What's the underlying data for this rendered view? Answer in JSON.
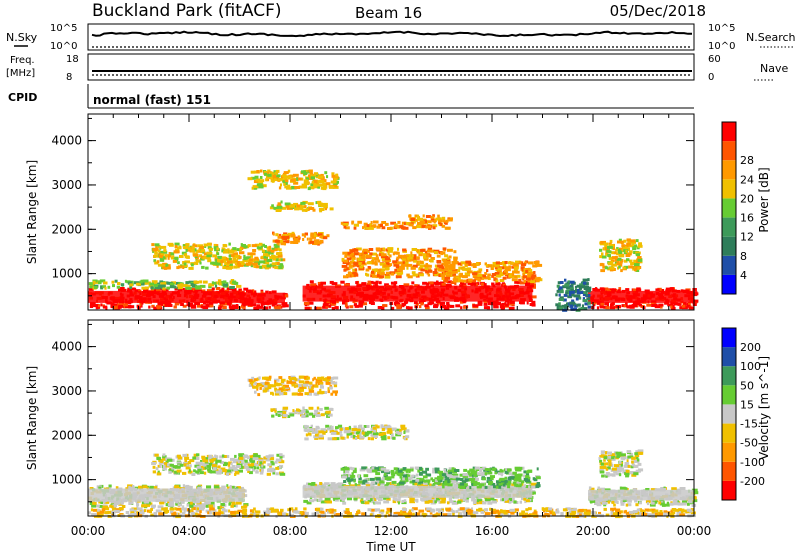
{
  "header": {
    "station": "Buckland Park (fitACF)",
    "beam": "Beam 16",
    "date": "05/Dec/2018"
  },
  "panels": {
    "nsky": {
      "label": "N.Sky",
      "top_tick": "10^5",
      "bottom_tick": "10^0",
      "right_label": "N.Search",
      "right_top_tick": "10^5",
      "right_bottom_tick": "10^0"
    },
    "freq": {
      "label": "Freq.",
      "unit": "[MHz]",
      "top_tick": "18",
      "bottom_tick": "8",
      "right_label": "Nave",
      "right_top_tick": "60",
      "right_bottom_tick": "0"
    },
    "cpid": {
      "label": "CPID",
      "value": "normal (fast) 151"
    }
  },
  "colors": {
    "power": [
      "#0000ff",
      "#1f4fa8",
      "#2e7d5a",
      "#3d9a5a",
      "#66cc33",
      "#f0c000",
      "#ff9900",
      "#ff5500",
      "#ff0000"
    ],
    "velocity": [
      "#ff0000",
      "#ff5500",
      "#ff9900",
      "#f0c000",
      "#c8c8c8",
      "#66cc33",
      "#3d9a5a",
      "#1f4fa8",
      "#0000ff"
    ]
  },
  "chart_data": [
    {
      "type": "heatmap",
      "title": "Power",
      "xlabel": "",
      "ylabel": "Slant Range [km]",
      "colorbar_label": "Power [dB]",
      "colorbar_ticks": [
        "4",
        "8",
        "12",
        "16",
        "20",
        "24",
        "28"
      ],
      "yticks": [
        "1000",
        "2000",
        "3000",
        "4000"
      ],
      "ylim": [
        180,
        4600
      ],
      "xlim": [
        0,
        24
      ],
      "regions": [
        {
          "t0": 0.0,
          "t1": 6.2,
          "r0": 250,
          "r1": 700,
          "level": 8
        },
        {
          "t0": 8.5,
          "t1": 17.6,
          "r0": 250,
          "r1": 850,
          "level": 8
        },
        {
          "t0": 19.8,
          "t1": 24.0,
          "r0": 250,
          "r1": 700,
          "level": 8
        },
        {
          "t0": 0.0,
          "t1": 6.0,
          "r0": 700,
          "r1": 880,
          "level": 4
        },
        {
          "t0": 6.0,
          "t1": 7.8,
          "r0": 250,
          "r1": 650,
          "level": 8
        },
        {
          "t0": 10.0,
          "t1": 14.5,
          "r0": 950,
          "r1": 1600,
          "level": 6
        },
        {
          "t0": 2.5,
          "t1": 7.6,
          "r0": 1150,
          "r1": 1700,
          "level": 5
        },
        {
          "t0": 7.2,
          "t1": 9.5,
          "r0": 1700,
          "r1": 1950,
          "level": 6
        },
        {
          "t0": 10.0,
          "t1": 12.6,
          "r0": 2050,
          "r1": 2200,
          "level": 6
        },
        {
          "t0": 7.2,
          "t1": 9.6,
          "r0": 2450,
          "r1": 2650,
          "level": 5
        },
        {
          "t0": 6.3,
          "t1": 9.8,
          "r0": 2950,
          "r1": 3350,
          "level": 5
        },
        {
          "t0": 12.5,
          "t1": 14.3,
          "r0": 2050,
          "r1": 2350,
          "level": 6
        },
        {
          "t0": 14.0,
          "t1": 17.8,
          "r0": 850,
          "r1": 1300,
          "level": 6
        },
        {
          "t0": 18.5,
          "t1": 19.8,
          "r0": 200,
          "r1": 900,
          "level": 2
        },
        {
          "t0": 20.2,
          "t1": 21.8,
          "r0": 1100,
          "r1": 1800,
          "level": 5
        }
      ]
    },
    {
      "type": "heatmap",
      "title": "Velocity",
      "xlabel": "Time UT",
      "ylabel": "Slant Range [km]",
      "colorbar_label": "Velocity [m s^-1]",
      "colorbar_ticks": [
        "-200",
        "-100",
        "-50",
        "-15",
        "15",
        "50",
        "100",
        "200"
      ],
      "xticks": [
        "00:00",
        "04:00",
        "08:00",
        "12:00",
        "16:00",
        "20:00",
        "00:00"
      ],
      "yticks": [
        "1000",
        "2000",
        "3000",
        "4000"
      ],
      "ylim": [
        180,
        4600
      ],
      "xlim": [
        0,
        24
      ],
      "regions": [
        {
          "t0": 0.0,
          "t1": 6.2,
          "r0": 400,
          "r1": 900,
          "level": 4
        },
        {
          "t0": 8.5,
          "t1": 17.6,
          "r0": 500,
          "r1": 950,
          "level": 4
        },
        {
          "t0": 19.8,
          "t1": 24.0,
          "r0": 450,
          "r1": 850,
          "level": 4
        },
        {
          "t0": 0.0,
          "t1": 24.0,
          "r0": 200,
          "r1": 380,
          "level": 3
        },
        {
          "t0": 10.0,
          "t1": 14.5,
          "r0": 950,
          "r1": 1300,
          "level": 5
        },
        {
          "t0": 2.5,
          "t1": 7.6,
          "r0": 1150,
          "r1": 1600,
          "level": 4
        },
        {
          "t0": 8.5,
          "t1": 12.6,
          "r0": 1950,
          "r1": 2250,
          "level": 4
        },
        {
          "t0": 7.2,
          "t1": 9.6,
          "r0": 2450,
          "r1": 2650,
          "level": 4
        },
        {
          "t0": 6.3,
          "t1": 9.8,
          "r0": 2950,
          "r1": 3350,
          "level": 3
        },
        {
          "t0": 14.0,
          "t1": 17.8,
          "r0": 850,
          "r1": 1300,
          "level": 5
        },
        {
          "t0": 20.2,
          "t1": 21.8,
          "r0": 1100,
          "r1": 1700,
          "level": 4
        }
      ]
    }
  ]
}
